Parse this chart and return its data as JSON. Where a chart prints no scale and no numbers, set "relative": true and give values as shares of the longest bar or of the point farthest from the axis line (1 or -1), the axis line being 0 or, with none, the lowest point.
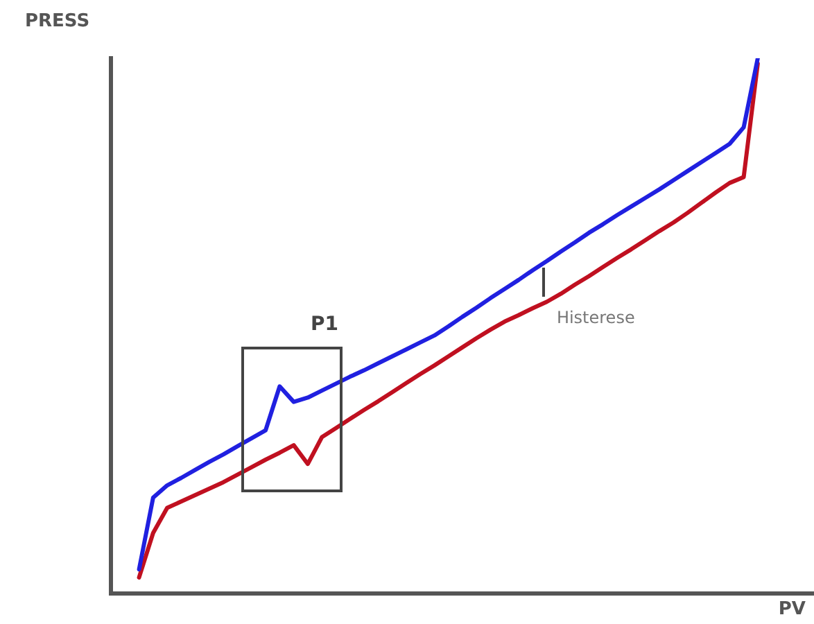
{
  "chart_data": {
    "type": "line",
    "relative": true,
    "ylabel": "PRESS",
    "xlabel": "PV",
    "marker": "none",
    "line_style": "solid",
    "categories": [
      null,
      null,
      null,
      null,
      null,
      null,
      null,
      null,
      null,
      null,
      null,
      null,
      null,
      null,
      null,
      null,
      null,
      null,
      null,
      null,
      null,
      null,
      null,
      null,
      null,
      null,
      null,
      null,
      null,
      null,
      null,
      null,
      null,
      null,
      null,
      null,
      null,
      null,
      null,
      null,
      null,
      null,
      null,
      null,
      null,
      null,
      null,
      null,
      null,
      null,
      null
    ],
    "series": [
      {
        "color": "#2020e0",
        "values": [
          null,
          null,
          0.045,
          0.179,
          0.202,
          0.216,
          0.231,
          0.246,
          0.26,
          0.275,
          0.29,
          0.305,
          0.387,
          0.358,
          0.366,
          0.379,
          0.392,
          0.405,
          0.417,
          0.43,
          0.443,
          0.456,
          0.469,
          0.482,
          0.499,
          0.517,
          0.534,
          0.552,
          0.569,
          0.586,
          0.604,
          0.621,
          0.639,
          0.656,
          0.674,
          0.69,
          0.707,
          0.723,
          0.739,
          0.755,
          0.772,
          0.789,
          0.806,
          0.823,
          0.84,
          0.871,
          1,
          null,
          null,
          null,
          null
        ]
      },
      {
        "color": "#c01020",
        "values": [
          null,
          null,
          0.03,
          0.113,
          0.16,
          0.172,
          0.184,
          0.196,
          0.208,
          0.222,
          0.236,
          0.25,
          0.263,
          0.277,
          0.242,
          0.292,
          0.309,
          0.326,
          0.343,
          0.359,
          0.376,
          0.393,
          0.41,
          0.426,
          0.443,
          0.46,
          0.477,
          0.493,
          0.508,
          0.52,
          0.533,
          0.545,
          0.56,
          0.577,
          0.593,
          0.61,
          0.627,
          0.643,
          0.66,
          0.677,
          0.693,
          0.711,
          0.73,
          0.749,
          0.767,
          0.778,
          0.99,
          null,
          null,
          null,
          null
        ]
      }
    ],
    "annotations": [
      "P1",
      "Histerese"
    ]
  }
}
